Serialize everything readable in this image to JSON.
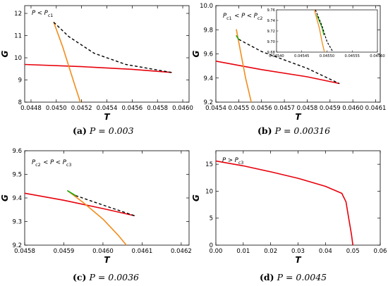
{
  "chart_data": [
    {
      "id": "a",
      "type": "line",
      "annotation": "P < P_c1",
      "xlabel": "T",
      "ylabel": "G",
      "xlim": [
        0.04475,
        0.04605
      ],
      "ylim": [
        8.0,
        12.35
      ],
      "xticks": [
        0.0448,
        0.045,
        0.0452,
        0.0454,
        0.0456,
        0.0458,
        0.046
      ],
      "xtick_labels": [
        "0.0448",
        "0.0450",
        "0.0452",
        "0.0454",
        "0.0456",
        "0.0458",
        "0.0460"
      ],
      "yticks": [
        8,
        9,
        10,
        11,
        12
      ],
      "ytick_labels": [
        "8",
        "9",
        "10",
        "11",
        "12"
      ],
      "series": [
        {
          "color": "#e8000b",
          "style": "solid",
          "x": [
            0.04475,
            0.0452,
            0.0456,
            0.04591
          ],
          "y": [
            9.7,
            9.6,
            9.48,
            9.34
          ]
        },
        {
          "color": "#f28c1b",
          "style": "solid",
          "x": [
            0.04498,
            0.04505,
            0.0451,
            0.04515,
            0.04519
          ],
          "y": [
            11.6,
            10.5,
            9.6,
            8.7,
            8.0
          ]
        },
        {
          "color": "#000000",
          "style": "dashed",
          "x": [
            0.04498,
            0.0451,
            0.0453,
            0.04555,
            0.04591
          ],
          "y": [
            11.6,
            10.95,
            10.2,
            9.7,
            9.34
          ]
        }
      ]
    },
    {
      "id": "b",
      "type": "line",
      "annotation": "P_c1 < P < P_c2",
      "xlabel": "T",
      "ylabel": "G",
      "xlim": [
        0.0454,
        0.04612
      ],
      "ylim": [
        9.2,
        10.0
      ],
      "xticks": [
        0.0454,
        0.0455,
        0.0456,
        0.0457,
        0.0458,
        0.0459,
        0.046,
        0.0461
      ],
      "xtick_labels": [
        "0.0454",
        "0.0455",
        "0.0456",
        "0.0457",
        "0.0458",
        "0.0459",
        "0.0460",
        "0.0461"
      ],
      "yticks": [
        9.2,
        9.4,
        9.6,
        9.8,
        10.0
      ],
      "ytick_labels": [
        "9.2",
        "9.4",
        "9.6",
        "9.8",
        "10.0"
      ],
      "series": [
        {
          "color": "#e8000b",
          "style": "solid",
          "x": [
            0.0454,
            0.0456,
            0.0458,
            0.04594
          ],
          "y": [
            9.54,
            9.47,
            9.41,
            9.355
          ]
        },
        {
          "color": "#f28c1b",
          "style": "solid",
          "x": [
            0.04549,
            0.04551,
            0.04553,
            0.045555
          ],
          "y": [
            9.8,
            9.6,
            9.4,
            9.2
          ]
        },
        {
          "color": "#000000",
          "style": "dashed",
          "x": [
            0.0455,
            0.0456,
            0.0458,
            0.04594
          ],
          "y": [
            9.72,
            9.62,
            9.48,
            9.355
          ]
        },
        {
          "color": "#1ba80a",
          "style": "solid",
          "x": [
            0.04549,
            0.0455
          ],
          "y": [
            9.75,
            9.72
          ]
        }
      ],
      "inset": {
        "xlim": [
          0.0454,
          0.0456
        ],
        "ylim": [
          9.68,
          9.76
        ],
        "xticks": [
          0.0454,
          0.04545,
          0.0455,
          0.04555,
          0.0456
        ],
        "xtick_labels": [
          "0.04540",
          "0.04545",
          "0.04550",
          "0.04555",
          "0.04560"
        ],
        "yticks": [
          9.68,
          9.7,
          9.72,
          9.74,
          9.76
        ],
        "ytick_labels": [
          "9.68",
          "9.70",
          "9.72",
          "9.74",
          "9.76"
        ],
        "series": [
          {
            "color": "#f28c1b",
            "style": "solid",
            "x": [
              0.045475,
              0.045485,
              0.04549,
              0.045495
            ],
            "y": [
              9.76,
              9.725,
              9.7,
              9.68
            ]
          },
          {
            "color": "#1ba80a",
            "style": "solid",
            "x": [
              0.04548,
              0.04549,
              0.045494
            ],
            "y": [
              9.75,
              9.727,
              9.712
            ]
          },
          {
            "color": "#000000",
            "style": "dashed",
            "x": [
              0.045477,
              0.04549,
              0.0455,
              0.045512
            ],
            "y": [
              9.76,
              9.73,
              9.7,
              9.68
            ]
          }
        ]
      }
    },
    {
      "id": "c",
      "type": "line",
      "annotation": "P_c2 < P < P_c3",
      "xlabel": "T",
      "ylabel": "G",
      "xlim": [
        0.0458,
        0.04622
      ],
      "ylim": [
        9.2,
        9.6
      ],
      "xticks": [
        0.0458,
        0.0459,
        0.046,
        0.0461,
        0.0462
      ],
      "xtick_labels": [
        "0.0458",
        "0.0459",
        "0.0460",
        "0.0461",
        "0.0462"
      ],
      "yticks": [
        9.2,
        9.3,
        9.4,
        9.5,
        9.6
      ],
      "ytick_labels": [
        "9.2",
        "9.3",
        "9.4",
        "9.5",
        "9.6"
      ],
      "series": [
        {
          "color": "#e8000b",
          "style": "solid",
          "x": [
            0.0458,
            0.0459,
            0.046,
            0.04608
          ],
          "y": [
            9.42,
            9.39,
            9.355,
            9.325
          ]
        },
        {
          "color": "#f28c1b",
          "style": "solid",
          "x": [
            0.04591,
            0.04595,
            0.046,
            0.04604,
            0.04606
          ],
          "y": [
            9.43,
            9.38,
            9.31,
            9.24,
            9.2
          ]
        },
        {
          "color": "#000000",
          "style": "dashed",
          "x": [
            0.04593,
            0.046,
            0.04608
          ],
          "y": [
            9.41,
            9.37,
            9.325
          ]
        },
        {
          "color": "#1ba80a",
          "style": "solid",
          "x": [
            0.04591,
            0.04593
          ],
          "y": [
            9.43,
            9.41
          ]
        }
      ]
    },
    {
      "id": "d",
      "type": "line",
      "annotation": "P > P_c3",
      "xlabel": "T",
      "ylabel": "G",
      "xlim": [
        0.0,
        0.06
      ],
      "ylim": [
        0,
        17.5
      ],
      "xticks": [
        0.0,
        0.01,
        0.02,
        0.03,
        0.04,
        0.05,
        0.06
      ],
      "xtick_labels": [
        "0.00",
        "0.01",
        "0.02",
        "0.03",
        "0.04",
        "0.05",
        "0.06"
      ],
      "yticks": [
        0,
        5,
        10,
        15
      ],
      "ytick_labels": [
        "0",
        "5",
        "10",
        "15"
      ],
      "series": [
        {
          "color": "#e8000b",
          "style": "solid",
          "x": [
            0.0,
            0.01,
            0.02,
            0.03,
            0.04,
            0.046,
            0.0475,
            0.0485,
            0.0495,
            0.05
          ],
          "y": [
            15.6,
            14.7,
            13.6,
            12.4,
            10.9,
            9.6,
            8.0,
            5.0,
            2.0,
            0.0
          ]
        }
      ]
    }
  ],
  "captions": [
    {
      "label": "(a)",
      "text": "P = 0.003"
    },
    {
      "label": "(b)",
      "text": "P = 0.00316"
    },
    {
      "label": "(c)",
      "text": "P = 0.0036"
    },
    {
      "label": "(d)",
      "text": "P = 0.0045"
    }
  ]
}
